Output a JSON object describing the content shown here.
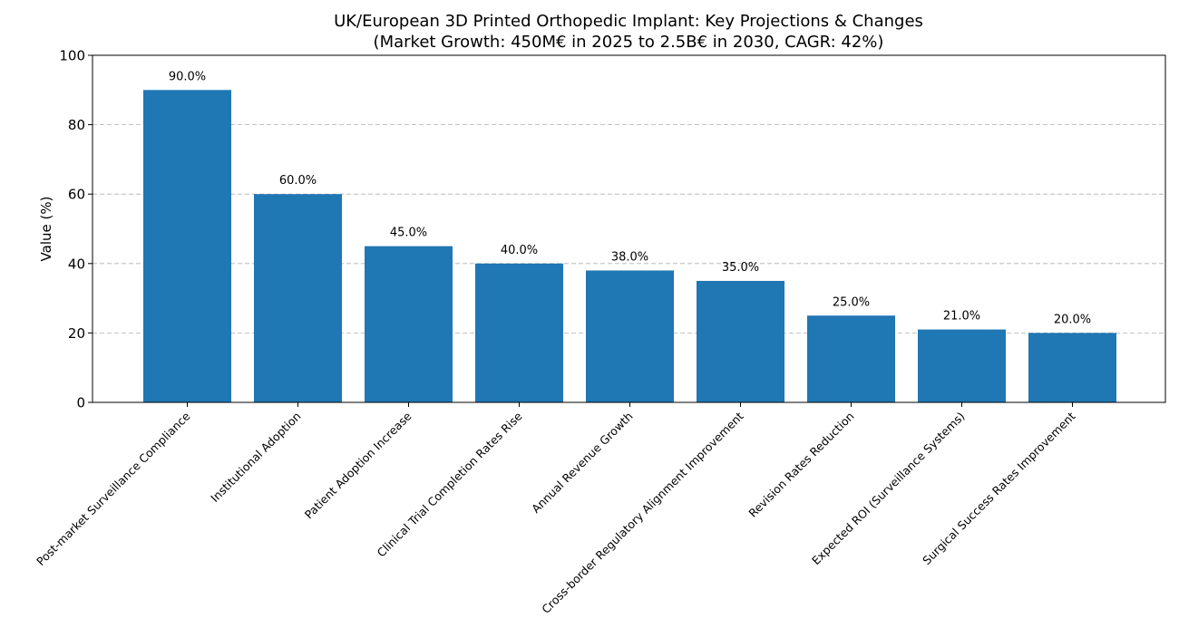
{
  "chart_data": {
    "type": "bar",
    "title": "UK/European 3D Printed Orthopedic Implant: Key Projections & Changes",
    "subtitle": "(Market Growth: 450M€ in 2025 to 2.5B€ in 2030, CAGR: 42%)",
    "xlabel": "",
    "ylabel": "Value (%)",
    "ylim": [
      0,
      100
    ],
    "yticks": [
      "0",
      "20",
      "40",
      "60",
      "80",
      "100"
    ],
    "grid": "horizontal dashed",
    "legend": "none",
    "bar_color": "#1f77b4",
    "categories": [
      "Post-market Surveillance Compliance",
      "Institutional Adoption",
      "Patient Adoption Increase",
      "Clinical Trial Completion Rates Rise",
      "Annual Revenue Growth",
      "Cross-border Regulatory Alignment Improvement",
      "Revision Rates Reduction",
      "Expected ROI (Surveillance Systems)",
      "Surgical Success Rates Improvement"
    ],
    "values": [
      90,
      60,
      45,
      40,
      38,
      35,
      25,
      21,
      20
    ],
    "data_labels": [
      "90.0%",
      "60.0%",
      "45.0%",
      "40.0%",
      "38.0%",
      "35.0%",
      "25.0%",
      "21.0%",
      "20.0%"
    ]
  }
}
